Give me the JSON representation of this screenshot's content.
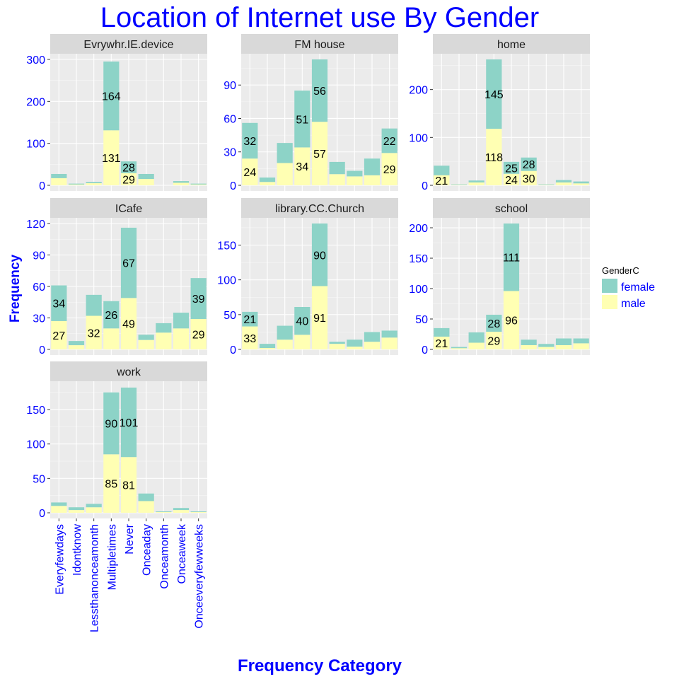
{
  "chart_data": {
    "type": "bar",
    "stacked": true,
    "faceted": true,
    "title": "Location of Internet use  By Gender",
    "xlabel": "Frequency Category",
    "ylabel": "Frequency",
    "categories": [
      "Everyfewdays",
      "Idontknow",
      "Lessthanonceamonth",
      "Multipletimes",
      "Never",
      "Onceaday",
      "Onceamonth",
      "Onceaweek",
      "Onceeveryfewweeks"
    ],
    "legend": {
      "title": "GenderC",
      "position": "right",
      "entries": [
        {
          "name": "female",
          "color": "#8dd3c7"
        },
        {
          "name": "male",
          "color": "#ffffb3"
        }
      ]
    },
    "colors": {
      "female": "#8dd3c7",
      "male": "#ffffb3",
      "panel_bg": "#ebebeb",
      "strip_bg": "#d9d9d9",
      "grid": "#ffffff",
      "text_accent": "#0000ff"
    },
    "grid": true,
    "facets": [
      {
        "name": "Evrywhr.IE.device",
        "ylim": [
          0,
          300
        ],
        "yticks": [
          0,
          100,
          200,
          300
        ],
        "female": [
          10,
          2,
          3,
          164,
          28,
          12,
          0,
          4,
          2
        ],
        "male": [
          17,
          2,
          5,
          131,
          29,
          15,
          0,
          6,
          2
        ],
        "labels": [
          {
            "cat": 3,
            "series": "female",
            "text": "164"
          },
          {
            "cat": 3,
            "series": "male",
            "text": "131"
          },
          {
            "cat": 4,
            "series": "female",
            "text": "28"
          },
          {
            "cat": 4,
            "series": "male",
            "text": "29"
          }
        ]
      },
      {
        "name": "FM house",
        "ylim": [
          0,
          113
        ],
        "yticks": [
          0,
          30,
          60,
          90
        ],
        "female": [
          32,
          4,
          18,
          51,
          56,
          11,
          5,
          15,
          22
        ],
        "male": [
          24,
          3,
          20,
          34,
          57,
          10,
          8,
          9,
          29
        ],
        "labels": [
          {
            "cat": 0,
            "series": "female",
            "text": "32"
          },
          {
            "cat": 0,
            "series": "male",
            "text": "24"
          },
          {
            "cat": 3,
            "series": "female",
            "text": "51"
          },
          {
            "cat": 3,
            "series": "male",
            "text": "34"
          },
          {
            "cat": 4,
            "series": "female",
            "text": "56"
          },
          {
            "cat": 4,
            "series": "male",
            "text": "57"
          },
          {
            "cat": 8,
            "series": "female",
            "text": "22"
          },
          {
            "cat": 8,
            "series": "male",
            "text": "29"
          }
        ]
      },
      {
        "name": "home",
        "ylim": [
          0,
          263
        ],
        "yticks": [
          0,
          100,
          200
        ],
        "female": [
          20,
          1,
          4,
          145,
          25,
          28,
          1,
          5,
          4
        ],
        "male": [
          21,
          1,
          6,
          118,
          24,
          30,
          1,
          6,
          4
        ],
        "labels": [
          {
            "cat": 0,
            "series": "male",
            "text": "21"
          },
          {
            "cat": 3,
            "series": "female",
            "text": "145"
          },
          {
            "cat": 3,
            "series": "male",
            "text": "118"
          },
          {
            "cat": 4,
            "series": "female",
            "text": "25"
          },
          {
            "cat": 4,
            "series": "male",
            "text": "24"
          },
          {
            "cat": 5,
            "series": "female",
            "text": "28"
          },
          {
            "cat": 5,
            "series": "male",
            "text": "30"
          }
        ]
      },
      {
        "name": "ICafe",
        "ylim": [
          0,
          120
        ],
        "yticks": [
          0,
          30,
          60,
          90,
          120
        ],
        "female": [
          34,
          4,
          20,
          26,
          67,
          5,
          9,
          15,
          39
        ],
        "male": [
          27,
          4,
          32,
          20,
          49,
          9,
          16,
          20,
          29
        ],
        "labels": [
          {
            "cat": 0,
            "series": "female",
            "text": "34"
          },
          {
            "cat": 0,
            "series": "male",
            "text": "27"
          },
          {
            "cat": 2,
            "series": "male",
            "text": "32"
          },
          {
            "cat": 3,
            "series": "female",
            "text": "26"
          },
          {
            "cat": 4,
            "series": "female",
            "text": "67"
          },
          {
            "cat": 4,
            "series": "male",
            "text": "49"
          },
          {
            "cat": 8,
            "series": "female",
            "text": "39"
          },
          {
            "cat": 8,
            "series": "male",
            "text": "29"
          }
        ]
      },
      {
        "name": "library.CC.Church",
        "ylim": [
          0,
          181
        ],
        "yticks": [
          0,
          50,
          100,
          150
        ],
        "female": [
          21,
          6,
          20,
          40,
          90,
          3,
          10,
          14,
          10
        ],
        "male": [
          33,
          2,
          14,
          21,
          91,
          8,
          4,
          11,
          17
        ],
        "labels": [
          {
            "cat": 0,
            "series": "female",
            "text": "21"
          },
          {
            "cat": 0,
            "series": "male",
            "text": "33"
          },
          {
            "cat": 3,
            "series": "female",
            "text": "40"
          },
          {
            "cat": 4,
            "series": "female",
            "text": "90"
          },
          {
            "cat": 4,
            "series": "male",
            "text": "91"
          }
        ]
      },
      {
        "name": "school",
        "ylim": [
          0,
          207
        ],
        "yticks": [
          0,
          50,
          100,
          150,
          200
        ],
        "female": [
          14,
          2,
          17,
          28,
          111,
          9,
          5,
          11,
          8
        ],
        "male": [
          21,
          2,
          11,
          29,
          96,
          7,
          4,
          7,
          10
        ],
        "labels": [
          {
            "cat": 0,
            "series": "male",
            "text": "21"
          },
          {
            "cat": 3,
            "series": "female",
            "text": "28"
          },
          {
            "cat": 3,
            "series": "male",
            "text": "29"
          },
          {
            "cat": 4,
            "series": "female",
            "text": "111"
          },
          {
            "cat": 4,
            "series": "male",
            "text": "96"
          }
        ]
      },
      {
        "name": "work",
        "ylim": [
          0,
          183
        ],
        "yticks": [
          0,
          50,
          100,
          150
        ],
        "female": [
          5,
          4,
          5,
          90,
          101,
          11,
          1,
          3,
          1
        ],
        "male": [
          10,
          4,
          8,
          85,
          81,
          17,
          1,
          4,
          1
        ],
        "labels": [
          {
            "cat": 3,
            "series": "female",
            "text": "90"
          },
          {
            "cat": 3,
            "series": "male",
            "text": "85"
          },
          {
            "cat": 4,
            "series": "female",
            "text": "101"
          },
          {
            "cat": 4,
            "series": "male",
            "text": "81"
          }
        ]
      }
    ]
  }
}
